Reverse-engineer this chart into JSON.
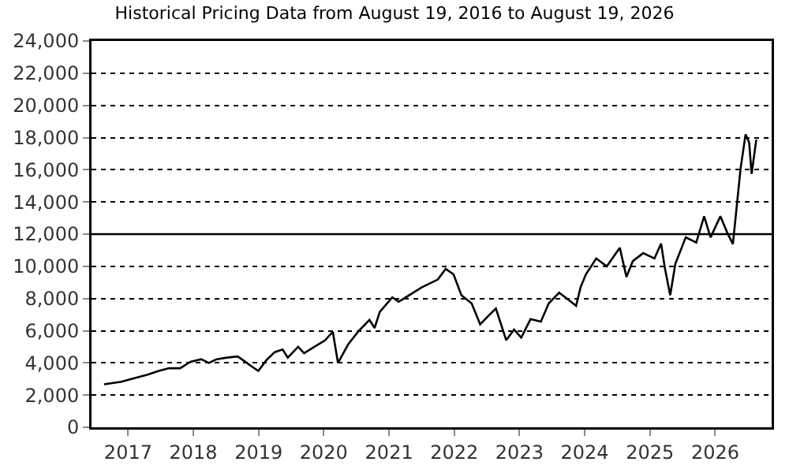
{
  "chart_data": {
    "type": "line",
    "title": "Historical Pricing Data from August 19, 2016 to August 19, 2026",
    "x": [
      "2016-08-19",
      "2016-11-24",
      "2017-01-19",
      "2017-04-20",
      "2017-06-21",
      "2017-08-18",
      "2017-10-19",
      "2017-12-16",
      "2018-02-14",
      "2018-03-29",
      "2018-05-12",
      "2018-07-09",
      "2018-09-06",
      "2018-10-19",
      "2018-11-17",
      "2018-12-31",
      "2019-02-14",
      "2019-04-02",
      "2019-05-16",
      "2019-06-14",
      "2019-08-11",
      "2019-09-13",
      "2019-11-10",
      "2020-01-08",
      "2020-02-21",
      "2020-03-21",
      "2020-05-18",
      "2020-07-16",
      "2020-09-13",
      "2020-10-12",
      "2020-11-10",
      "2021-01-19",
      "2021-02-24",
      "2021-07-02",
      "2021-10-01",
      "2021-11-14",
      "2021-12-28",
      "2022-02-10",
      "2022-04-08",
      "2022-05-26",
      "2022-07-09",
      "2022-08-22",
      "2022-10-19",
      "2022-12-02",
      "2023-01-11",
      "2023-03-04",
      "2023-05-01",
      "2023-06-14",
      "2023-08-11",
      "2023-10-08",
      "2023-11-14",
      "2023-12-09",
      "2024-01-08",
      "2024-03-06",
      "2024-05-04",
      "2024-07-16",
      "2024-08-22",
      "2024-09-27",
      "2024-11-24",
      "2025-01-26",
      "2025-03-04",
      "2025-03-26",
      "2025-04-24",
      "2025-05-23",
      "2025-07-20",
      "2025-09-17",
      "2025-10-31",
      "2025-12-06",
      "2026-01-30",
      "2026-03-08",
      "2026-04-10",
      "2026-05-05",
      "2026-05-23",
      "2026-06-20",
      "2026-07-10",
      "2026-07-24",
      "2026-08-19"
    ],
    "series": [
      {
        "color": "#000000",
        "values": [
          2670,
          2830,
          3000,
          3270,
          3500,
          3670,
          3670,
          4070,
          4230,
          4000,
          4230,
          4330,
          4400,
          4070,
          3830,
          3500,
          4170,
          4670,
          4830,
          4330,
          5000,
          4600,
          5000,
          5400,
          5930,
          4000,
          5170,
          6000,
          6670,
          6170,
          7170,
          8070,
          7800,
          8690,
          9180,
          9840,
          9500,
          8200,
          7700,
          6400,
          6900,
          7380,
          5410,
          6070,
          5570,
          6720,
          6560,
          7700,
          8360,
          7870,
          7540,
          8690,
          9500,
          10490,
          10000,
          11150,
          9340,
          10330,
          10820,
          10490,
          11410,
          9840,
          8200,
          10160,
          11800,
          11480,
          13110,
          11800,
          13110,
          12130,
          11380,
          14100,
          16070,
          18200,
          17700,
          15740,
          17870
        ]
      }
    ],
    "xlim": [
      "2016-06-10",
      "2026-11-13"
    ],
    "xticks": [
      {
        "value": "2017-01-01",
        "label": "2017"
      },
      {
        "value": "2018-01-01",
        "label": "2018"
      },
      {
        "value": "2019-01-01",
        "label": "2019"
      },
      {
        "value": "2020-01-01",
        "label": "2020"
      },
      {
        "value": "2021-01-01",
        "label": "2021"
      },
      {
        "value": "2022-01-01",
        "label": "2022"
      },
      {
        "value": "2023-01-01",
        "label": "2023"
      },
      {
        "value": "2024-01-01",
        "label": "2024"
      },
      {
        "value": "2025-01-01",
        "label": "2025"
      },
      {
        "value": "2026-01-01",
        "label": "2026"
      }
    ],
    "ylim": [
      0,
      24000
    ],
    "yticks": [
      {
        "value": 0,
        "label": "0"
      },
      {
        "value": 2000,
        "label": "2,000"
      },
      {
        "value": 4000,
        "label": "4,000"
      },
      {
        "value": 6000,
        "label": "6,000"
      },
      {
        "value": 8000,
        "label": "8,000"
      },
      {
        "value": 10000,
        "label": "10,000"
      },
      {
        "value": 12000,
        "label": "12,000"
      },
      {
        "value": 14000,
        "label": "14,000"
      },
      {
        "value": 16000,
        "label": "16,000"
      },
      {
        "value": 18000,
        "label": "18,000"
      },
      {
        "value": 20000,
        "label": "20,000"
      },
      {
        "value": 22000,
        "label": "22,000"
      },
      {
        "value": 24000,
        "label": "24,000"
      }
    ],
    "grid": "y",
    "line_style": "solid",
    "marker": "none",
    "ref_lines": [
      {
        "axis": "y",
        "value": 12000,
        "color": "#000000",
        "line_style": "solid"
      }
    ]
  }
}
